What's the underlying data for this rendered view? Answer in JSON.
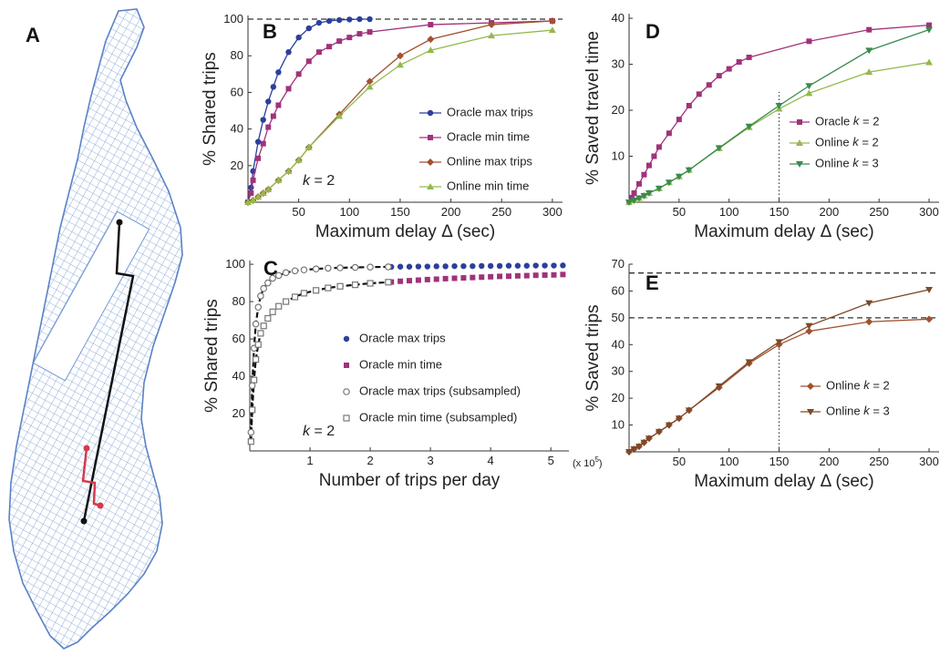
{
  "figure": {
    "panel_letters": {
      "A": "A",
      "B": "B",
      "C": "C",
      "D": "D",
      "E": "E"
    },
    "k2_label": "k = 2",
    "scale_note": "(x 10",
    "scale_exp": "5",
    "scale_close": ")"
  },
  "colors": {
    "oracle_max": "#2b3f9c",
    "oracle_min": "#a0327a",
    "online_max": "#a0522d",
    "online_min": "#94b94d",
    "online_k3": "#3a8a4e",
    "online_k2_E": "#a0522d",
    "online_k3_E": "#7a4a2a",
    "map_streets": "#6f93d0",
    "route_black": "#111111",
    "route_red": "#d23b4c"
  },
  "chart_data": [
    {
      "id": "B",
      "type": "line",
      "xlabel": "Maximum delay Δ (sec)",
      "ylabel": "% Shared trips",
      "xlim": [
        0,
        310
      ],
      "ylim": [
        0,
        102
      ],
      "xticks": [
        50,
        100,
        150,
        200,
        250,
        300
      ],
      "yticks": [
        20,
        40,
        60,
        80,
        100
      ],
      "reference_lines": [
        {
          "y": 100,
          "style": "dashed"
        }
      ],
      "annotation": "k = 2",
      "legend_position": "lower-right",
      "series": [
        {
          "name": "Oracle max trips",
          "marker": "circle",
          "color_key": "oracle_max",
          "x": [
            0,
            3,
            5,
            10,
            15,
            20,
            25,
            30,
            40,
            50,
            60,
            70,
            80,
            90,
            100,
            110,
            120
          ],
          "y": [
            0,
            8,
            17,
            33,
            45,
            55,
            63,
            71,
            82,
            90,
            95,
            98,
            99,
            99.5,
            99.8,
            100,
            100
          ]
        },
        {
          "name": "Oracle min time",
          "marker": "square",
          "color_key": "oracle_min",
          "x": [
            0,
            3,
            5,
            10,
            15,
            20,
            25,
            30,
            40,
            50,
            60,
            70,
            80,
            90,
            100,
            110,
            120,
            180,
            240,
            300
          ],
          "y": [
            0,
            5,
            12,
            24,
            32,
            41,
            47,
            53,
            62,
            70,
            77,
            82,
            85,
            88,
            90,
            92,
            93,
            97,
            98,
            99
          ]
        },
        {
          "name": "Online max trips",
          "marker": "diamond",
          "color_key": "online_max",
          "x": [
            0,
            5,
            10,
            15,
            20,
            30,
            40,
            50,
            60,
            90,
            120,
            150,
            180,
            240,
            300
          ],
          "y": [
            0,
            1,
            3,
            5,
            7,
            12,
            17,
            23,
            30,
            48,
            66,
            80,
            89,
            97,
            99
          ]
        },
        {
          "name": "Online min time",
          "marker": "triangle",
          "color_key": "online_min",
          "x": [
            0,
            5,
            10,
            15,
            20,
            30,
            40,
            50,
            60,
            90,
            120,
            150,
            180,
            240,
            300
          ],
          "y": [
            0,
            1,
            3,
            5,
            7,
            12,
            17,
            23,
            30,
            47,
            63,
            75,
            83,
            91,
            94
          ]
        }
      ]
    },
    {
      "id": "C",
      "type": "scatter",
      "xlabel": "Number of trips per day",
      "ylabel": "% Shared trips",
      "xlim": [
        0,
        5.3
      ],
      "ylim": [
        0,
        102
      ],
      "xticks": [
        1,
        2,
        3,
        4,
        5
      ],
      "yticks": [
        20,
        40,
        60,
        80,
        100
      ],
      "annotation": "k = 2",
      "legend_position": "lower-right",
      "series": [
        {
          "name": "Oracle max trips",
          "marker": "circle-filled",
          "color_key": "oracle_max",
          "x": [
            2.35,
            2.5,
            2.65,
            2.8,
            2.95,
            3.1,
            3.25,
            3.4,
            3.55,
            3.7,
            3.85,
            4.0,
            4.15,
            4.3,
            4.45,
            4.6,
            4.75,
            4.9,
            5.05,
            5.2
          ],
          "y": [
            98.6,
            98.7,
            98.7,
            98.8,
            98.8,
            98.9,
            98.9,
            99.0,
            99.0,
            99.0,
            99.1,
            99.1,
            99.1,
            99.2,
            99.2,
            99.2,
            99.3,
            99.3,
            99.3,
            99.4
          ]
        },
        {
          "name": "Oracle min time",
          "marker": "square-filled",
          "color_key": "oracle_min",
          "x": [
            2.35,
            2.5,
            2.65,
            2.8,
            2.95,
            3.1,
            3.25,
            3.4,
            3.55,
            3.7,
            3.85,
            4.0,
            4.15,
            4.3,
            4.45,
            4.6,
            4.75,
            4.9,
            5.05,
            5.2
          ],
          "y": [
            90.5,
            90.9,
            91.2,
            91.5,
            91.8,
            92.0,
            92.3,
            92.5,
            92.7,
            92.9,
            93.1,
            93.3,
            93.5,
            93.6,
            93.8,
            93.9,
            94.1,
            94.2,
            94.3,
            94.5
          ]
        },
        {
          "name": "Oracle max trips (subsampled)",
          "marker": "circle-open",
          "color_key": "subsampled",
          "x": [
            0.02,
            0.04,
            0.07,
            0.1,
            0.14,
            0.18,
            0.23,
            0.3,
            0.38,
            0.48,
            0.6,
            0.75,
            0.9,
            1.1,
            1.3,
            1.5,
            1.75,
            2.0,
            2.3
          ],
          "y": [
            10,
            35,
            55,
            68,
            77,
            83,
            87,
            90,
            92.5,
            94,
            95.5,
            96.5,
            97,
            97.5,
            97.9,
            98.1,
            98.3,
            98.5,
            98.6
          ]
        },
        {
          "name": "Oracle min time (subsampled)",
          "marker": "square-open",
          "color_key": "subsampled",
          "x": [
            0.02,
            0.04,
            0.07,
            0.1,
            0.14,
            0.18,
            0.23,
            0.3,
            0.38,
            0.48,
            0.6,
            0.75,
            0.9,
            1.1,
            1.3,
            1.5,
            1.75,
            2.0,
            2.3
          ],
          "y": [
            5,
            22,
            38,
            49,
            57,
            63,
            67,
            71,
            74.5,
            77.5,
            80,
            82.5,
            84.5,
            86,
            87.3,
            88.2,
            89,
            89.8,
            90.4
          ]
        }
      ]
    },
    {
      "id": "D",
      "type": "line",
      "xlabel": "Maximum delay Δ (sec)",
      "ylabel": "% Saved travel time",
      "xlim": [
        0,
        310
      ],
      "ylim": [
        0,
        41
      ],
      "xticks": [
        50,
        100,
        150,
        200,
        250,
        300
      ],
      "yticks": [
        10,
        20,
        30,
        40
      ],
      "reference_lines": [
        {
          "x": 150,
          "style": "dotted"
        }
      ],
      "legend_position": "middle-right",
      "series": [
        {
          "name": "Oracle k = 2",
          "marker": "square",
          "color_key": "oracle_min",
          "x": [
            0,
            3,
            5,
            10,
            15,
            20,
            25,
            30,
            40,
            50,
            60,
            70,
            80,
            90,
            100,
            110,
            120,
            180,
            240,
            300
          ],
          "y": [
            0,
            1,
            2,
            4,
            6,
            8,
            10,
            12,
            15,
            18,
            21,
            23.5,
            25.5,
            27.5,
            29,
            30.5,
            31.5,
            35,
            37.5,
            38.5
          ]
        },
        {
          "name": "Online k = 2",
          "marker": "triangle",
          "color_key": "online_min",
          "x": [
            0,
            5,
            10,
            15,
            20,
            30,
            40,
            50,
            60,
            90,
            120,
            150,
            180,
            240,
            300
          ],
          "y": [
            0,
            0.4,
            0.9,
            1.4,
            2,
            3,
            4.3,
            5.6,
            7,
            11.7,
            16.3,
            20.3,
            23.7,
            28.3,
            30.4
          ]
        },
        {
          "name": "Online k = 3",
          "marker": "triangle-down",
          "color_key": "online_k3",
          "x": [
            0,
            5,
            10,
            15,
            20,
            30,
            40,
            50,
            60,
            90,
            120,
            150,
            180,
            240,
            300
          ],
          "y": [
            0,
            0.4,
            0.9,
            1.4,
            2,
            3,
            4.3,
            5.6,
            7,
            11.8,
            16.5,
            21,
            25.3,
            33,
            37.5
          ]
        }
      ]
    },
    {
      "id": "E",
      "type": "line",
      "xlabel": "Maximum delay Δ (sec)",
      "ylabel": "% Saved trips",
      "xlim": [
        0,
        310
      ],
      "ylim": [
        0,
        70
      ],
      "xticks": [
        50,
        100,
        150,
        200,
        250,
        300
      ],
      "yticks": [
        10,
        20,
        30,
        40,
        50,
        60,
        70
      ],
      "reference_lines": [
        {
          "y": 66.7,
          "style": "dashed"
        },
        {
          "y": 50,
          "style": "dashed"
        },
        {
          "x": 150,
          "style": "dotted"
        }
      ],
      "legend_position": "lower-right",
      "series": [
        {
          "name": "Online k = 2",
          "marker": "diamond",
          "color_key": "online_k2_E",
          "x": [
            0,
            5,
            10,
            15,
            20,
            30,
            40,
            50,
            60,
            90,
            120,
            150,
            180,
            240,
            300
          ],
          "y": [
            0,
            1,
            2,
            3.5,
            5,
            7.5,
            10,
            12.5,
            15.5,
            24,
            33,
            40,
            45,
            48.5,
            49.5
          ]
        },
        {
          "name": "Online k = 3",
          "marker": "triangle-down",
          "color_key": "online_k3_E",
          "x": [
            0,
            5,
            10,
            15,
            20,
            30,
            40,
            50,
            60,
            90,
            120,
            150,
            180,
            240,
            300
          ],
          "y": [
            0,
            1,
            2,
            3.5,
            5,
            7.5,
            10,
            12.5,
            15.5,
            24.5,
            33.5,
            41,
            47,
            55.5,
            60.5
          ]
        }
      ]
    }
  ]
}
